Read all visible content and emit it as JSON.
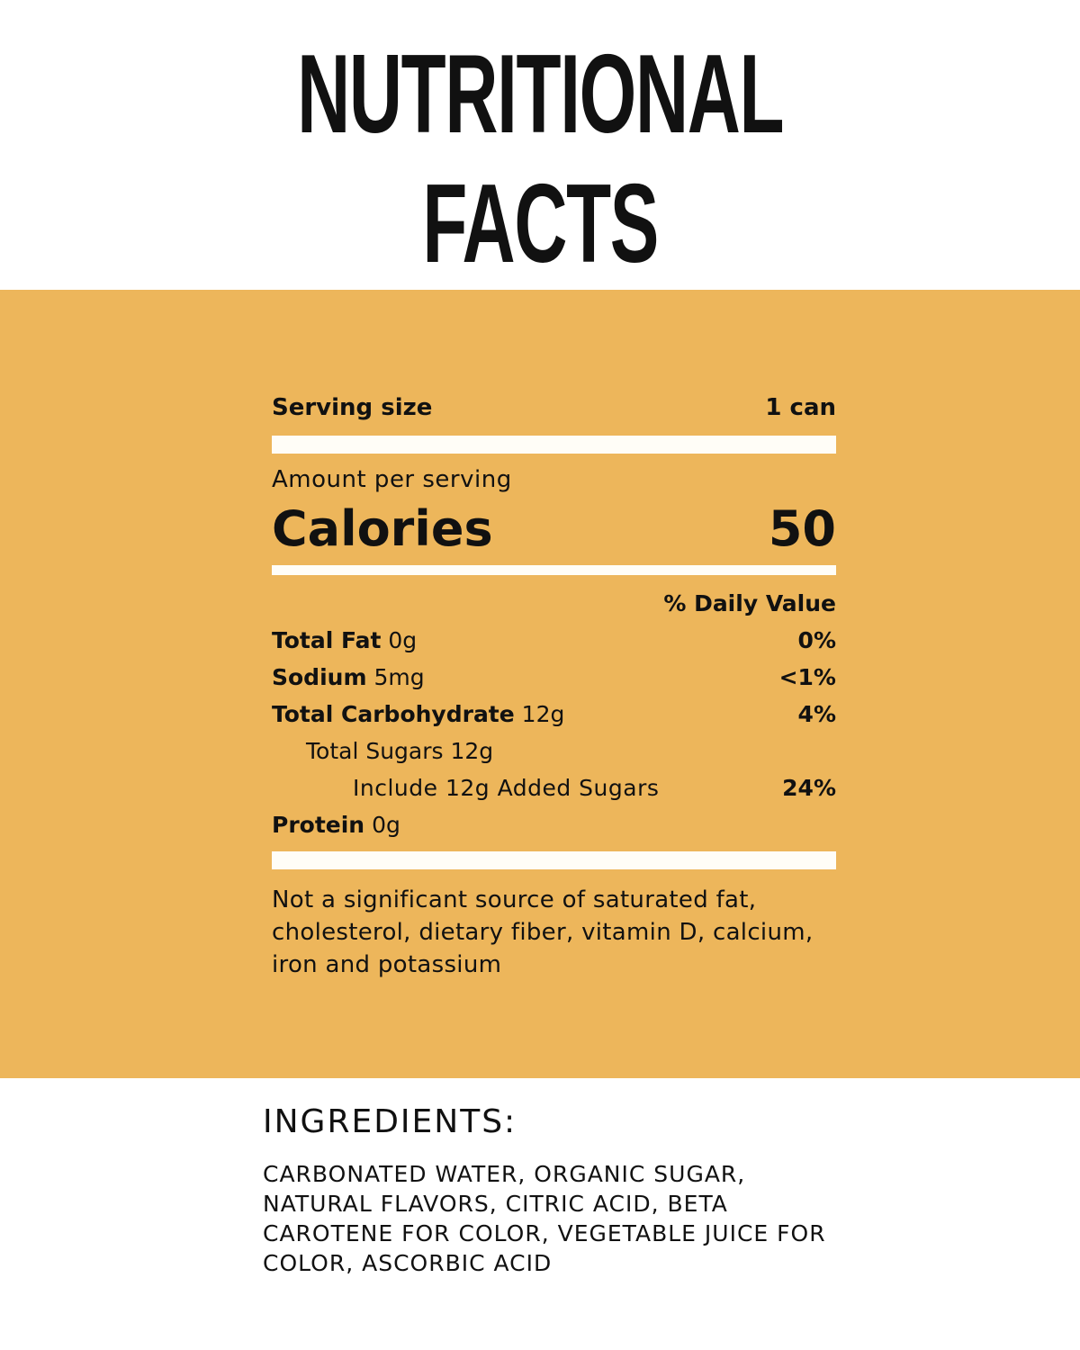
{
  "title": {
    "line1": "NUTRITIONAL",
    "line2": "FACTS"
  },
  "colors": {
    "band": "#EDB65B",
    "bar": "#FFFDF7",
    "text": "#111111"
  },
  "label": {
    "serving_size_label": "Serving size",
    "serving_size_value": "1 can",
    "amount_per_serving": "Amount per serving",
    "calories_label": "Calories",
    "calories_value": "50",
    "daily_value_header": "% Daily Value",
    "nutrients": [
      {
        "name": "Total Fat",
        "amount": "0g",
        "dv": "0%"
      },
      {
        "name": "Sodium",
        "amount": "5mg",
        "dv": "<1%"
      },
      {
        "name": "Total Carbohydrate",
        "amount": "12g",
        "dv": "4%"
      },
      {
        "name": "Total Sugars 12g",
        "amount": "",
        "dv": ""
      },
      {
        "name": "Include 12g Added Sugars",
        "amount": "",
        "dv": "24%"
      },
      {
        "name": "Protein",
        "amount": "0g",
        "dv": ""
      }
    ],
    "footnote": "Not a significant source of saturated fat, cholesterol, dietary fiber, vitamin D, calcium, iron and potassium"
  },
  "ingredients": {
    "heading": "INGREDIENTS:",
    "text": "CARBONATED WATER, ORGANIC SUGAR, NATURAL FLAVORS, CITRIC ACID, BETA CAROTENE FOR COLOR, VEGETABLE JUICE FOR COLOR, ASCORBIC ACID"
  }
}
